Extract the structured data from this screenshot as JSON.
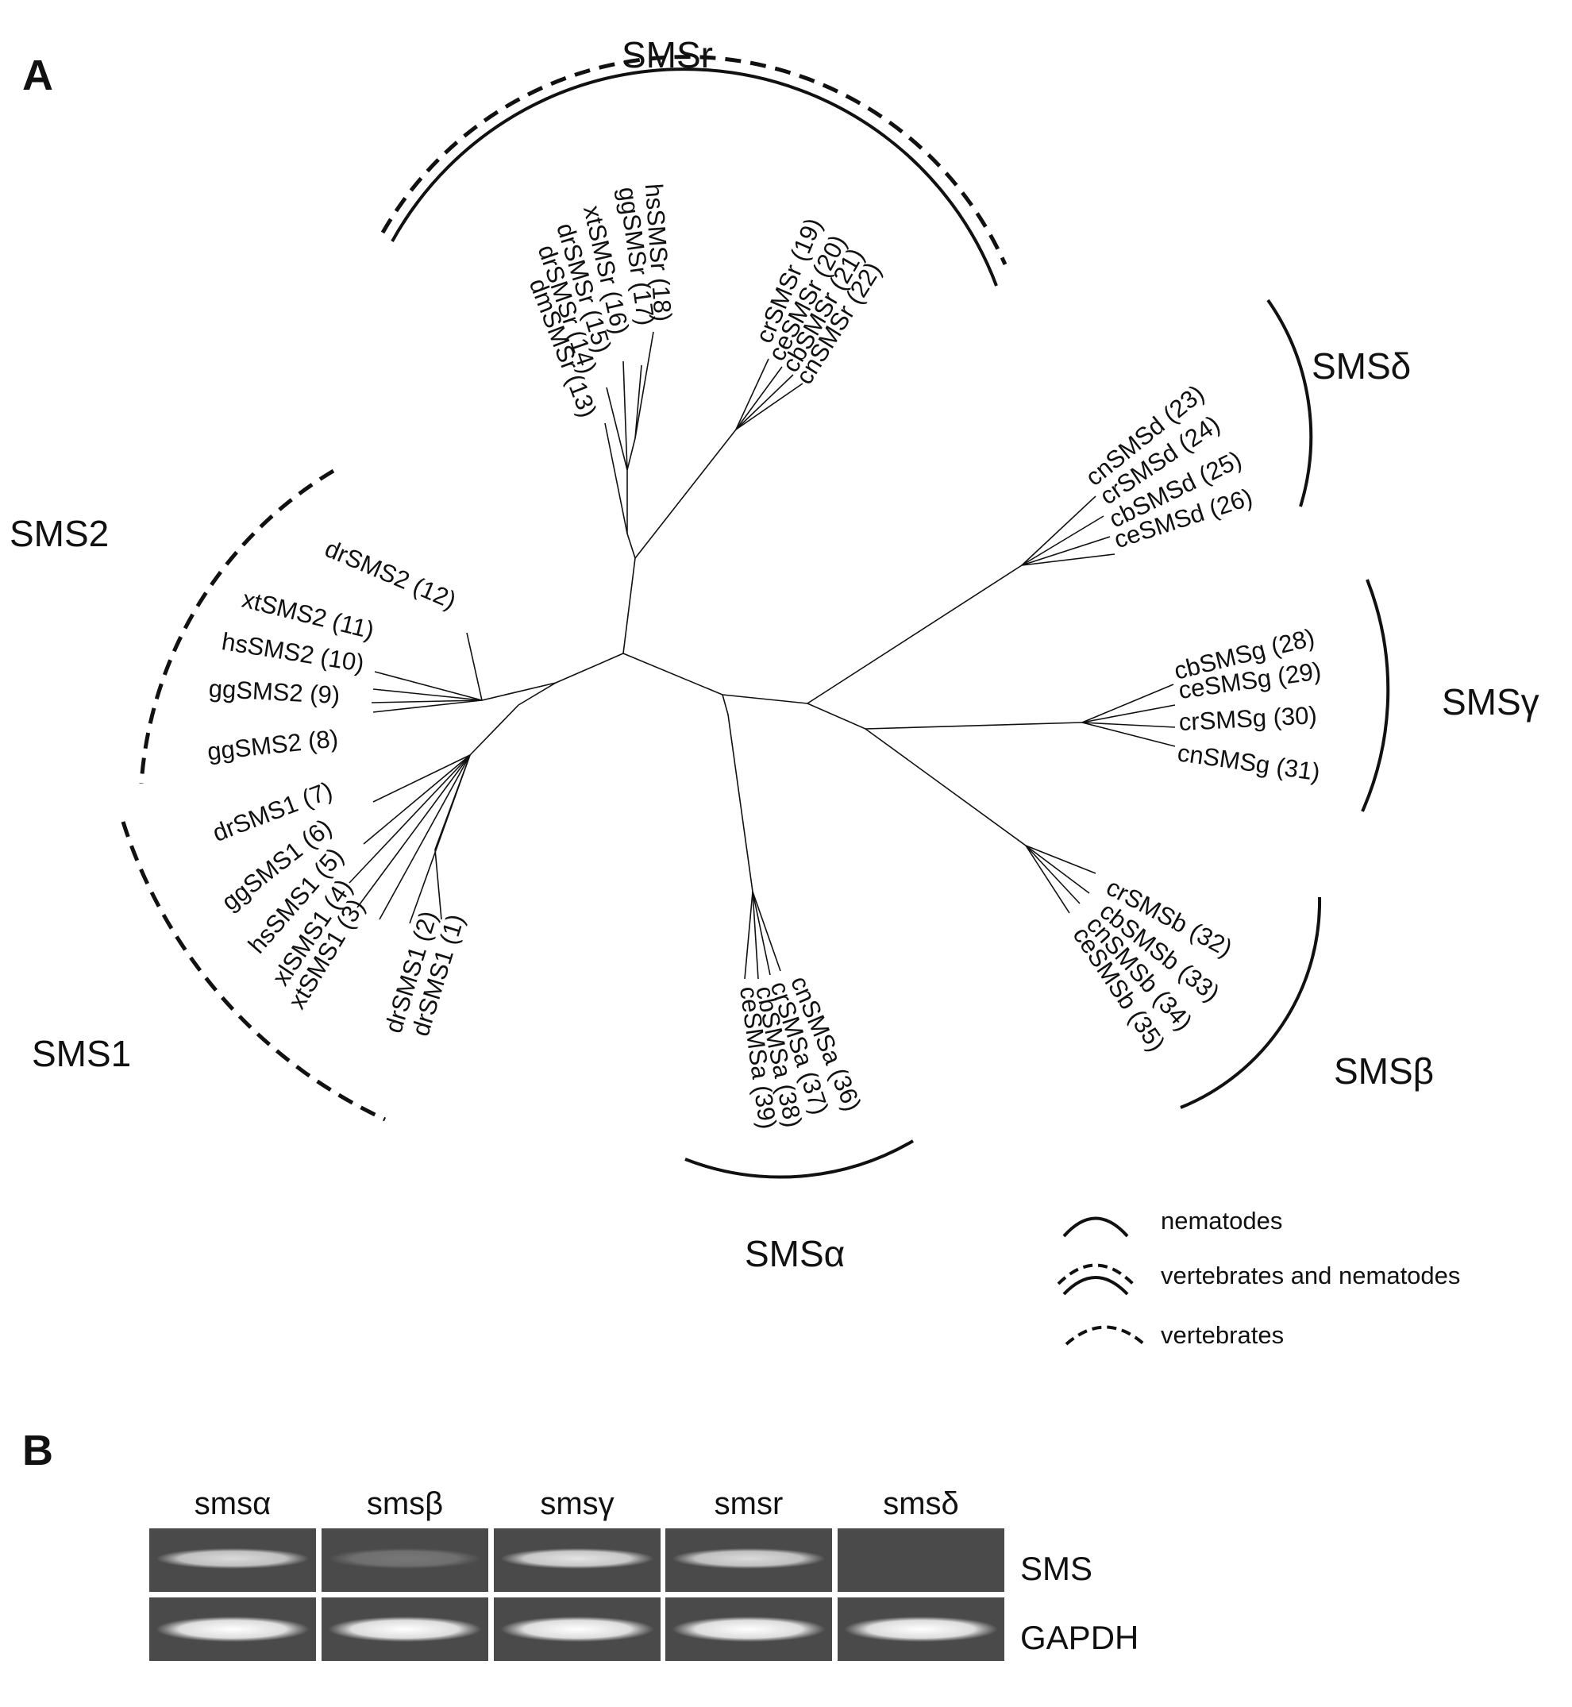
{
  "panel_a_label": "A",
  "panel_b_label": "B",
  "groups": [
    {
      "id": "smsr",
      "label": "SMSr"
    },
    {
      "id": "smsd",
      "label": "SMSδ"
    },
    {
      "id": "smsg",
      "label": "SMSγ"
    },
    {
      "id": "smsb",
      "label": "SMSβ"
    },
    {
      "id": "smsa",
      "label": "SMSα"
    },
    {
      "id": "sms1",
      "label": "SMS1"
    },
    {
      "id": "sms2",
      "label": "SMS2"
    }
  ],
  "leaves": [
    {
      "label": "drSMS1",
      "num": "(1)"
    },
    {
      "label": "drSMS1",
      "num": "(2)"
    },
    {
      "label": "xtSMS1",
      "num": "(3)"
    },
    {
      "label": "xlSMS1",
      "num": "(4)"
    },
    {
      "label": "hsSMS1",
      "num": "(5)"
    },
    {
      "label": "ggSMS1",
      "num": "(6)"
    },
    {
      "label": "drSMS1",
      "num": "(7)"
    },
    {
      "label": "ggSMS2",
      "num": "(8)"
    },
    {
      "label": "ggSMS2",
      "num": "(9)"
    },
    {
      "label": "hsSMS2",
      "num": "(10)"
    },
    {
      "label": "xtSMS2",
      "num": "(11)"
    },
    {
      "label": "drSMS2",
      "num": "(12)"
    },
    {
      "label": "dmSMSr",
      "num": "(13)"
    },
    {
      "label": "drSMSr",
      "num": "(14)"
    },
    {
      "label": "drSMSr",
      "num": "(15)"
    },
    {
      "label": "xtSMSr",
      "num": "(16)"
    },
    {
      "label": "ggSMSr",
      "num": "(17)"
    },
    {
      "label": "hsSMSr",
      "num": "(18)"
    },
    {
      "label": "crSMSr",
      "num": "(19)"
    },
    {
      "label": "ceSMSr",
      "num": "(20)"
    },
    {
      "label": "cbSMSr",
      "num": "(21)"
    },
    {
      "label": "cnSMSr",
      "num": "(22)"
    },
    {
      "label": "cnSMSd",
      "num": "(23)"
    },
    {
      "label": "crSMSd",
      "num": "(24)"
    },
    {
      "label": "cbSMSd",
      "num": "(25)"
    },
    {
      "label": "ceSMSd",
      "num": "(26)"
    },
    {
      "label": "cbSMSg",
      "num": "(28)"
    },
    {
      "label": "ceSMSg",
      "num": "(29)"
    },
    {
      "label": "crSMSg",
      "num": "(30)"
    },
    {
      "label": "cnSMSg",
      "num": "(31)"
    },
    {
      "label": "crSMSb",
      "num": "(32)"
    },
    {
      "label": "cbSMSb",
      "num": "(33)"
    },
    {
      "label": "cnSMSb",
      "num": "(34)"
    },
    {
      "label": "ceSMSb",
      "num": "(35)"
    },
    {
      "label": "cnSMSa",
      "num": "(36)"
    },
    {
      "label": "crSMSa",
      "num": "(37)"
    },
    {
      "label": "cbSMSa",
      "num": "(38)"
    },
    {
      "label": "ceSMSa",
      "num": "(39)"
    }
  ],
  "legend": [
    {
      "style": "solid",
      "label": "nematodes"
    },
    {
      "style": "double",
      "label": "vertebrates and nematodes"
    },
    {
      "style": "dashed",
      "label": "vertebrates"
    }
  ],
  "gel": {
    "lanes": [
      "smsα",
      "smsβ",
      "smsγ",
      "smsr",
      "smsδ"
    ],
    "rows": [
      "SMS",
      "GAPDH"
    ],
    "sms_band_intensity": [
      0.8,
      0.25,
      0.85,
      0.8,
      0.0
    ],
    "gapdh_band_intensity": [
      1.0,
      1.0,
      1.0,
      1.0,
      1.0
    ]
  },
  "colors": {
    "ink": "#111111",
    "gel_bg": "#4a4a4a",
    "band": "#f5f5f5"
  }
}
